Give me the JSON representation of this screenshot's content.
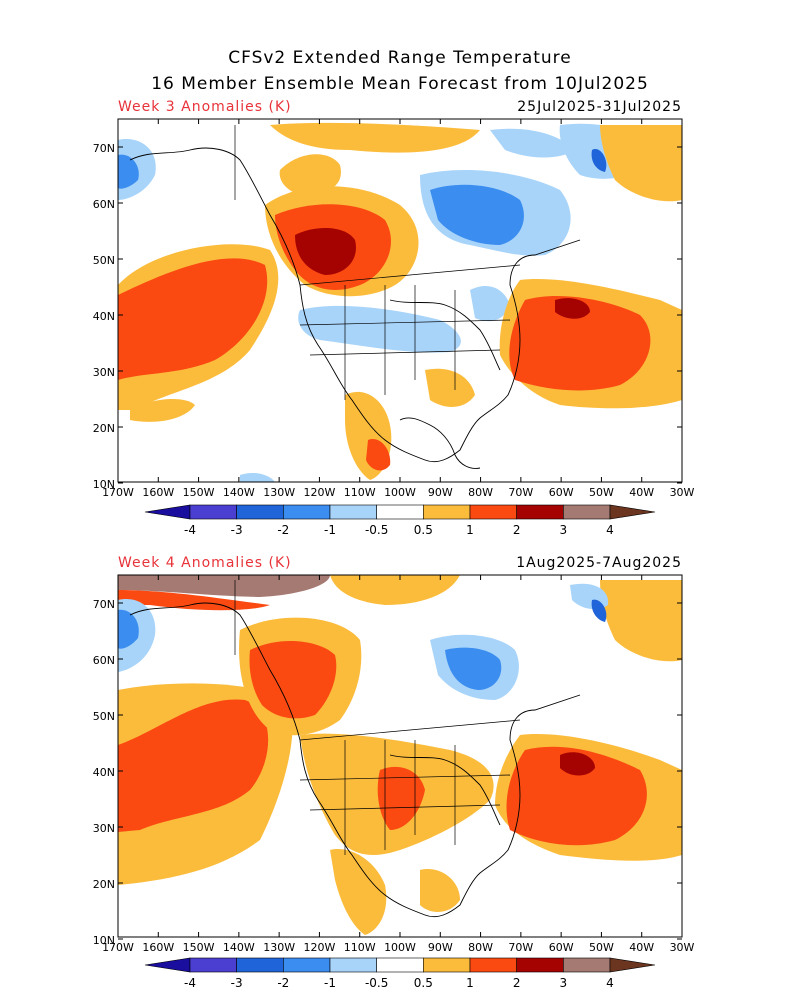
{
  "title_line1": "CFSv2 Extended Range Temperature",
  "title_line2": "16 Member Ensemble Mean Forecast from 10Jul2025",
  "panels": [
    {
      "label": "Week 3 Anomalies (K)",
      "dates": "25Jul2025-31Jul2025"
    },
    {
      "label": "Week 4 Anomalies (K)",
      "dates": "1Aug2025-7Aug2025"
    }
  ],
  "lat_labels": [
    "70N",
    "60N",
    "50N",
    "40N",
    "30N",
    "20N",
    "10N"
  ],
  "lon_labels": [
    "170W",
    "160W",
    "150W",
    "140W",
    "130W",
    "120W",
    "110W",
    "100W",
    "90W",
    "80W",
    "70W",
    "60W",
    "50W",
    "40W",
    "30W"
  ],
  "colorbar": {
    "ticks": [
      "-4",
      "-3",
      "-2",
      "-1",
      "-0.5",
      "0.5",
      "1",
      "2",
      "3",
      "4"
    ],
    "colors": [
      "#1a0e9e",
      "#4a3fd0",
      "#1f64d8",
      "#3b8df0",
      "#a8d4fa",
      "#ffffff",
      "#fbbc3c",
      "#fa4a12",
      "#a50202",
      "#a47a72",
      "#6b3520"
    ]
  }
}
